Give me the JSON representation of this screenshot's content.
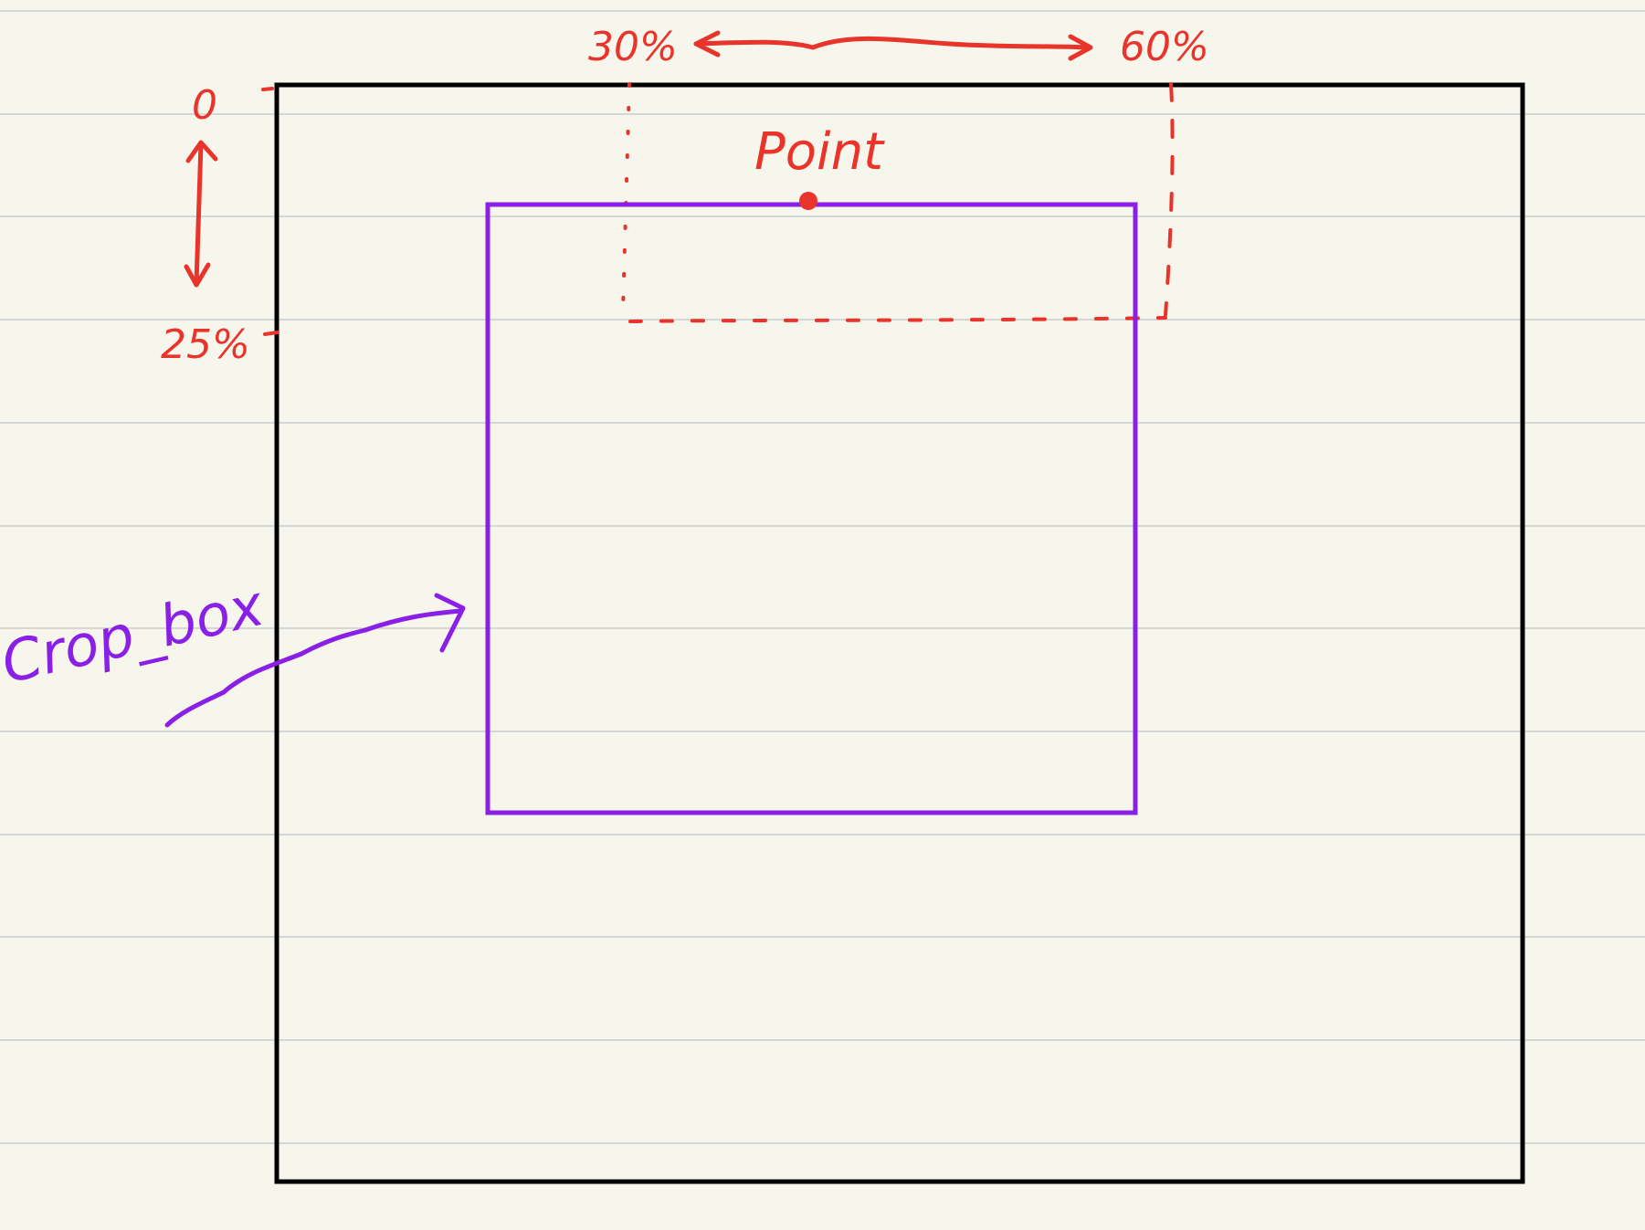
{
  "colors": {
    "paper": "#f7f6ec",
    "ruled_line": "#d6d7d4",
    "outer_frame": "#000000",
    "annotation": "#e8342a",
    "crop_box": "#8a1fe6"
  },
  "labels": {
    "top_range_start": "30%",
    "top_range_end": "60%",
    "left_range_start": "0",
    "left_range_end": "25%",
    "point_label": "Point",
    "crop_box_label": "Crop_box"
  }
}
